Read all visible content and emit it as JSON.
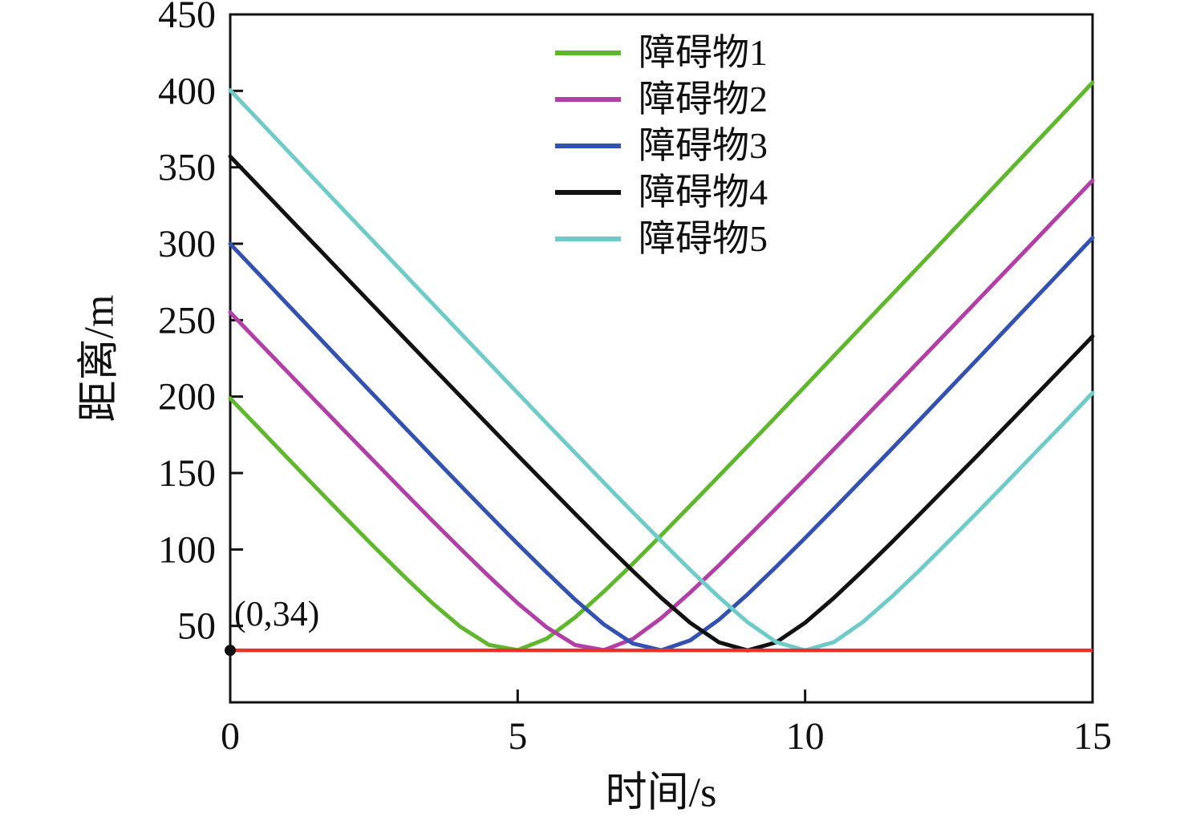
{
  "figure": {
    "background": "#ffffff"
  },
  "chart_data": {
    "type": "line",
    "title": "",
    "xlabel": "时间/s",
    "ylabel": "距离/m",
    "xlim": [
      0,
      15
    ],
    "ylim": [
      0,
      450
    ],
    "x_ticks": [
      0,
      5,
      10,
      15
    ],
    "y_ticks": [
      50,
      100,
      150,
      200,
      250,
      300,
      350,
      400,
      450
    ],
    "grid": false,
    "legend_position": "top-center-inside",
    "x": [
      0,
      0.5,
      1,
      1.5,
      2,
      2.5,
      3,
      3.5,
      4,
      4.5,
      5,
      5.5,
      6,
      6.5,
      7,
      7.5,
      8,
      8.5,
      9,
      9.5,
      10,
      10.5,
      11,
      11.5,
      12,
      12.5,
      13,
      13.5,
      14,
      14.5,
      15
    ],
    "series": [
      {
        "name": "障碍物1",
        "color": "#5fb72d",
        "values": [
          198.9,
          179.3,
          159.7,
          140.2,
          120.9,
          101.8,
          83.3,
          65.5,
          49.5,
          37.6,
          34.2,
          41.6,
          55.6,
          72.5,
          90.6,
          109.4,
          128.6,
          148.0,
          167.5,
          187.1,
          206.8,
          226.6,
          246.4,
          266.2,
          286.0,
          305.9,
          325.8,
          345.7,
          365.6,
          385.5,
          405.4
        ]
      },
      {
        "name": "障碍物2",
        "color": "#b13fa6",
        "values": [
          255.1,
          235.5,
          216.0,
          196.5,
          177.1,
          157.8,
          138.5,
          119.5,
          100.7,
          82.4,
          64.9,
          49.2,
          37.5,
          34.2,
          41.4,
          55.2,
          71.8,
          89.6,
          108.2,
          127.1,
          146.2,
          165.5,
          184.9,
          204.3,
          223.8,
          243.3,
          262.9,
          282.5,
          302.1,
          321.8,
          341.4
        ]
      },
      {
        "name": "障碍物3",
        "color": "#3351af",
        "values": [
          299.9,
          280.1,
          260.2,
          240.4,
          220.6,
          200.9,
          181.2,
          161.6,
          142.1,
          122.8,
          103.7,
          85.1,
          67.2,
          51.0,
          38.5,
          34.1,
          40.5,
          54.0,
          70.7,
          88.8,
          107.5,
          126.6,
          146.0,
          165.5,
          185.1,
          204.8,
          224.6,
          244.4,
          264.2,
          284.0,
          303.9
        ]
      },
      {
        "name": "障碍物4",
        "color": "#121212",
        "values": [
          357.1,
          337.5,
          317.8,
          298.2,
          278.6,
          259.0,
          239.4,
          219.9,
          200.4,
          181.0,
          161.6,
          142.4,
          123.3,
          104.4,
          86.0,
          68.3,
          52.1,
          39.3,
          34.0,
          39.3,
          52.1,
          68.3,
          86.0,
          104.4,
          123.3,
          142.4,
          161.6,
          181.0,
          200.4,
          219.9,
          239.4
        ]
      },
      {
        "name": "障碍物5",
        "color": "#6fcbc7",
        "values": [
          400.4,
          380.6,
          360.7,
          340.8,
          321.0,
          301.2,
          281.4,
          261.6,
          241.8,
          222.1,
          202.4,
          182.7,
          163.2,
          143.7,
          124.4,
          105.4,
          86.7,
          68.8,
          52.4,
          39.4,
          34.0,
          39.4,
          52.4,
          68.8,
          86.7,
          105.4,
          124.4,
          143.7,
          163.2,
          182.7,
          202.4
        ]
      }
    ],
    "threshold_line": {
      "y": 34,
      "color": "#e93128"
    },
    "annotation": {
      "text": "(0,34)",
      "x": 0,
      "y": 34
    },
    "marker_point": {
      "x": 0,
      "y": 34,
      "color": "#111111"
    }
  }
}
